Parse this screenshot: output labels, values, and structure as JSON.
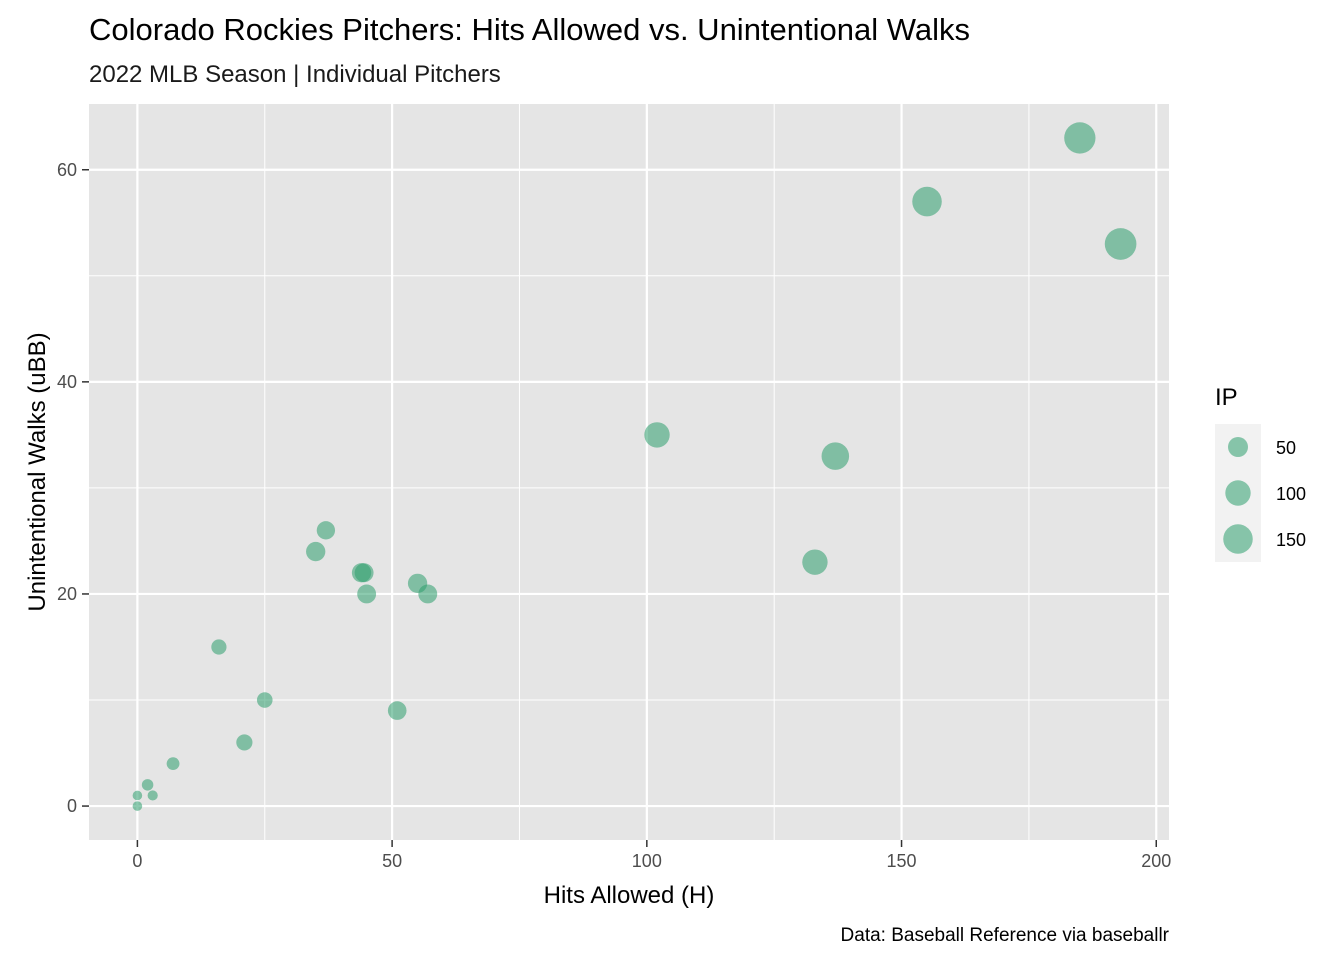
{
  "chart_data": {
    "type": "scatter",
    "title": "Colorado Rockies Pitchers: Hits Allowed vs. Unintentional Walks",
    "subtitle": "2022 MLB Season | Individual Pitchers",
    "xlabel": "Hits Allowed (H)",
    "ylabel": "Unintentional Walks (uBB)",
    "caption": "Data: Baseball Reference via baseballr",
    "xlim": [
      -9.5,
      202.5
    ],
    "ylim": [
      -3.2,
      66.2
    ],
    "x_ticks": [
      0,
      50,
      100,
      150,
      200
    ],
    "x_tick_labels": [
      "0",
      "50",
      "100",
      "150",
      "200"
    ],
    "y_ticks": [
      0,
      20,
      40,
      60
    ],
    "y_tick_labels": [
      "0",
      "20",
      "40",
      "60"
    ],
    "grid": true,
    "point_color": "#2e9e6e",
    "panel_color": "#e5e5e5",
    "size_legend": {
      "title": "IP",
      "placement": "right",
      "values": [
        50,
        100,
        150
      ],
      "labels": [
        "50",
        "100",
        "150"
      ]
    },
    "points": [
      {
        "x": 0,
        "y": 0,
        "ip": 2
      },
      {
        "x": 0,
        "y": 1,
        "ip": 2
      },
      {
        "x": 2,
        "y": 2,
        "ip": 6
      },
      {
        "x": 3,
        "y": 1,
        "ip": 3
      },
      {
        "x": 7,
        "y": 4,
        "ip": 10
      },
      {
        "x": 16,
        "y": 15,
        "ip": 20
      },
      {
        "x": 21,
        "y": 6,
        "ip": 25
      },
      {
        "x": 25,
        "y": 10,
        "ip": 22
      },
      {
        "x": 35,
        "y": 24,
        "ip": 45
      },
      {
        "x": 37,
        "y": 26,
        "ip": 38
      },
      {
        "x": 44,
        "y": 22,
        "ip": 45
      },
      {
        "x": 44.5,
        "y": 22,
        "ip": 42
      },
      {
        "x": 45,
        "y": 20,
        "ip": 42
      },
      {
        "x": 51,
        "y": 9,
        "ip": 40
      },
      {
        "x": 55,
        "y": 21,
        "ip": 45
      },
      {
        "x": 57,
        "y": 20,
        "ip": 42
      },
      {
        "x": 102,
        "y": 35,
        "ip": 100
      },
      {
        "x": 133,
        "y": 23,
        "ip": 100
      },
      {
        "x": 137,
        "y": 33,
        "ip": 125
      },
      {
        "x": 155,
        "y": 57,
        "ip": 150
      },
      {
        "x": 185,
        "y": 63,
        "ip": 175
      },
      {
        "x": 193,
        "y": 53,
        "ip": 180
      }
    ]
  }
}
